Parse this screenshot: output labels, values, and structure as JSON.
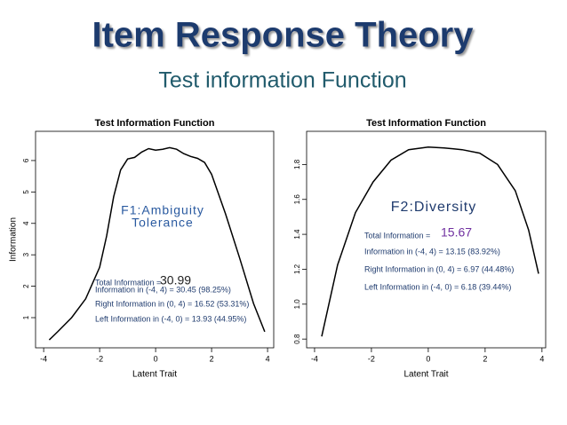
{
  "header": {
    "title": "Item Response Theory",
    "subtitle": "Test information Function"
  },
  "chart_data": [
    {
      "type": "line",
      "title": "Test Information Function",
      "xlabel": "Latent Trait",
      "ylabel": "Information",
      "color": "#000000",
      "x": [
        -3.8,
        -3.5,
        -3,
        -2.5,
        -2,
        -1.75,
        -1.5,
        -1.25,
        -1,
        -0.75,
        -0.5,
        -0.25,
        0,
        0.25,
        0.5,
        0.75,
        1,
        1.25,
        1.5,
        1.75,
        2,
        2.5,
        3,
        3.5,
        3.9
      ],
      "values": [
        0.29,
        0.55,
        1.0,
        1.6,
        2.6,
        3.6,
        4.85,
        5.7,
        6.05,
        6.1,
        6.27,
        6.38,
        6.33,
        6.36,
        6.41,
        6.36,
        6.22,
        6.13,
        6.07,
        5.94,
        5.56,
        4.3,
        2.9,
        1.45,
        0.55
      ],
      "xlim": [
        -4.29,
        4.22
      ],
      "xticks": [
        -4,
        -2,
        0,
        2,
        4
      ],
      "ylim": [
        0.04,
        6.93
      ],
      "yticks": [
        1,
        2,
        3,
        4,
        5,
        6
      ],
      "annotations": [
        "F1:Ambiguity",
        "Tolerance",
        "Total Information = ",
        "30.99",
        "Information in (-4, 4) = 30.45 (98.25%)",
        "Right Information in (0, 4) = 16.52 (53.31%)",
        "Left Information in (-4, 0) = 13.93 (44.95%)"
      ]
    },
    {
      "type": "line",
      "title": "Test Information Function",
      "xlabel": "Latent Trait",
      "color": "#000000",
      "x": [
        -3.75,
        -3.19,
        -2.56,
        -1.94,
        -1.31,
        -0.69,
        0,
        0.56,
        1.19,
        1.81,
        2.44,
        3.06,
        3.53,
        3.88
      ],
      "values": [
        0.815,
        1.225,
        1.525,
        1.7,
        1.825,
        1.885,
        1.9,
        1.895,
        1.885,
        1.865,
        1.8,
        1.65,
        1.425,
        1.175
      ],
      "xlim": [
        -4.28,
        4.13
      ],
      "xticks": [
        -4,
        -2,
        0,
        2,
        4
      ],
      "ylim": [
        0.75,
        1.99
      ],
      "yticks": [
        0.8,
        {
          "value": 1,
          "label": "1.0"
        },
        1.2,
        1.4,
        1.6,
        1.8
      ],
      "annotations": [
        "F2:Diversity",
        "Total Information = ",
        "15.67",
        "Information in (-4, 4) = 13.15 (83.92%)",
        "Right Information in (0, 4) = 6.97 (44.48%)",
        "Left Information in (-4, 0) = 6.18 (39.44%)"
      ]
    }
  ]
}
